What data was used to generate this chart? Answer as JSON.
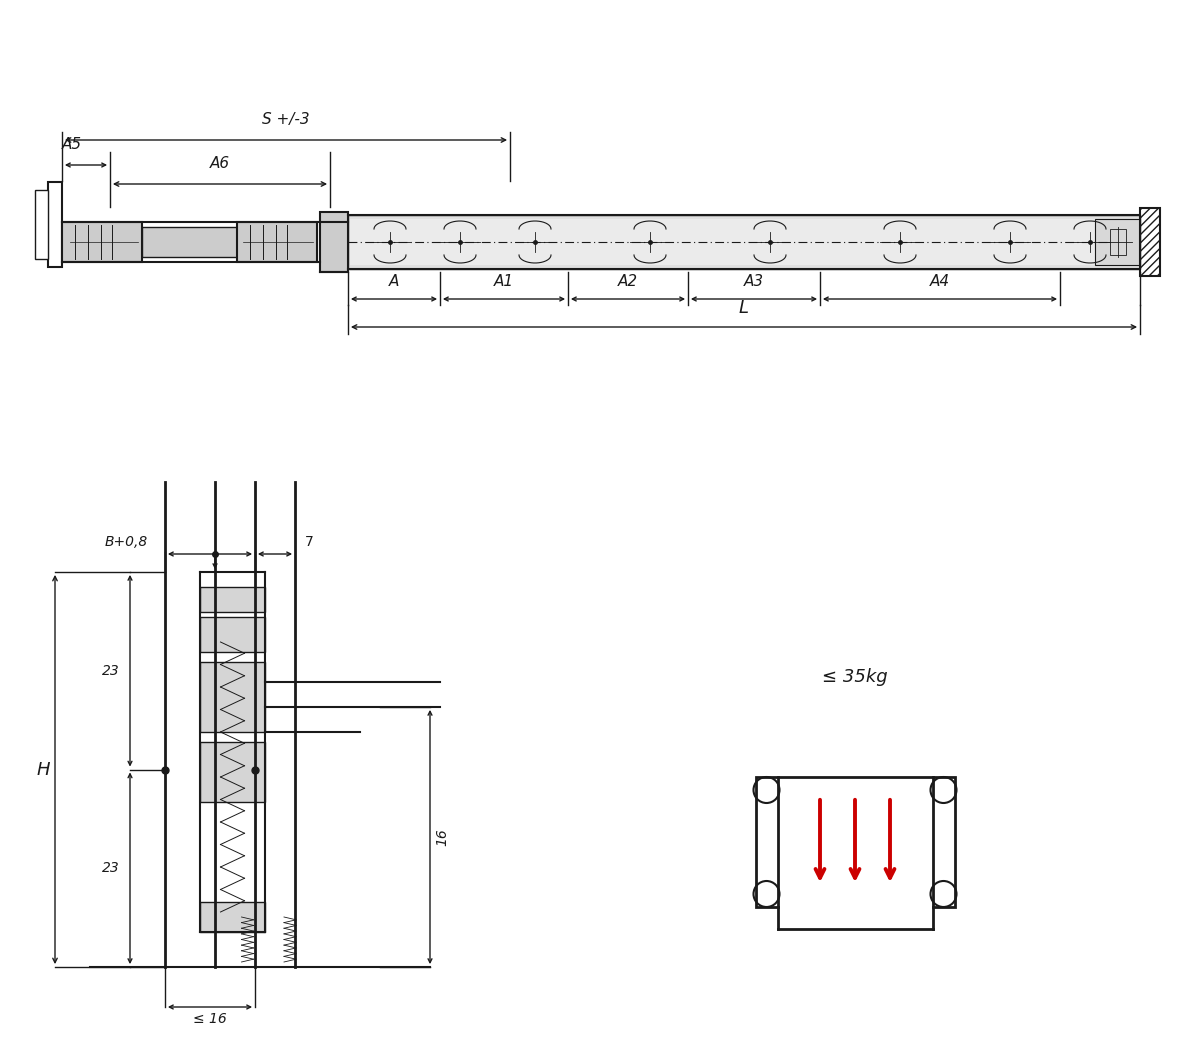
{
  "bg_color": "#ffffff",
  "line_color": "#1a1a1a",
  "gray_light": "#cccccc",
  "gray_mid": "#b0b0b0",
  "red_color": "#cc0000",
  "font_size_label": 11,
  "font_size_dim": 10,
  "top_diagram": {
    "S_label": "S +/-3",
    "A5_label": "A5",
    "A6_label": "A6",
    "A_label": "A",
    "A1_label": "A1",
    "A2_label": "A2",
    "A3_label": "A3",
    "A4_label": "A4",
    "L_label": "L"
  },
  "bottom_left_diagram": {
    "B_label": "B+0,8",
    "val7_label": "7",
    "val23a_label": "23",
    "val23b_label": "23",
    "H_label": "H",
    "val16_label": "16",
    "le16_label": "≤ 16"
  },
  "bottom_right_label": "≤ 35kg"
}
